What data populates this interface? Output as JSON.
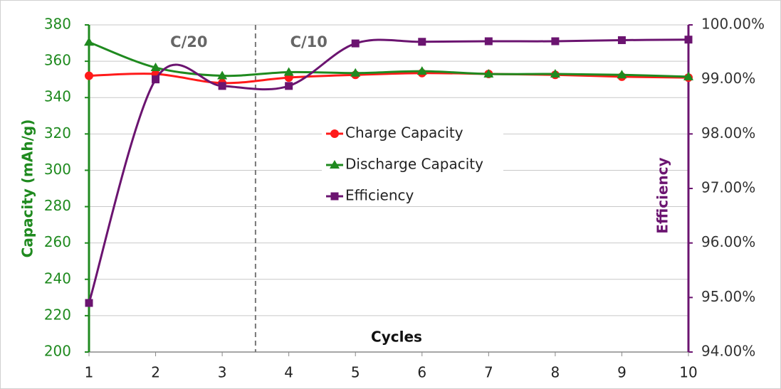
{
  "chart_data": {
    "type": "line",
    "x": [
      1,
      2,
      3,
      4,
      5,
      6,
      7,
      8,
      9,
      10
    ],
    "xlim": [
      1,
      10
    ],
    "xticks": [
      1,
      2,
      3,
      4,
      5,
      6,
      7,
      8,
      9,
      10
    ],
    "xlabel": "Cycles",
    "ylabel": "Capacity (mAh/g)",
    "y2label": "Efficiency",
    "ylim": [
      200,
      380
    ],
    "yticks": [
      200,
      220,
      240,
      260,
      280,
      300,
      320,
      340,
      360,
      380
    ],
    "y2lim": [
      94,
      100
    ],
    "y2ticks": [
      {
        "value": 94,
        "label": "94.00%"
      },
      {
        "value": 95,
        "label": "95.00%"
      },
      {
        "value": 96,
        "label": "96.00%"
      },
      {
        "value": 97,
        "label": "97.00%"
      },
      {
        "value": 98,
        "label": "98.00%"
      },
      {
        "value": 99,
        "label": "99.00%"
      },
      {
        "value": 100,
        "label": "100.00%"
      }
    ],
    "grid": true,
    "phase_divider": 3.5,
    "annotations": [
      {
        "text": "C/20",
        "x": 2.5
      },
      {
        "text": "C/10",
        "x": 4.3
      }
    ],
    "series": [
      {
        "name": "Charge Capacity",
        "color": "#ff1a1a",
        "marker": "circle",
        "values": [
          352,
          353,
          348,
          351,
          352.5,
          353.5,
          353,
          352.5,
          351.5,
          351
        ]
      },
      {
        "name": "Discharge Capacity",
        "color": "#1f8a1f",
        "marker": "triangle",
        "values": [
          370.5,
          356.5,
          352,
          354,
          353.5,
          354.5,
          353,
          353,
          352.5,
          351.5
        ]
      },
      {
        "name": "Efficiency",
        "color": "#6b1470",
        "marker": "square",
        "axis": "y2",
        "values": [
          94.9,
          99.0,
          98.88,
          98.88,
          99.66,
          99.69,
          99.7,
          99.7,
          99.72,
          99.73
        ]
      }
    ]
  }
}
